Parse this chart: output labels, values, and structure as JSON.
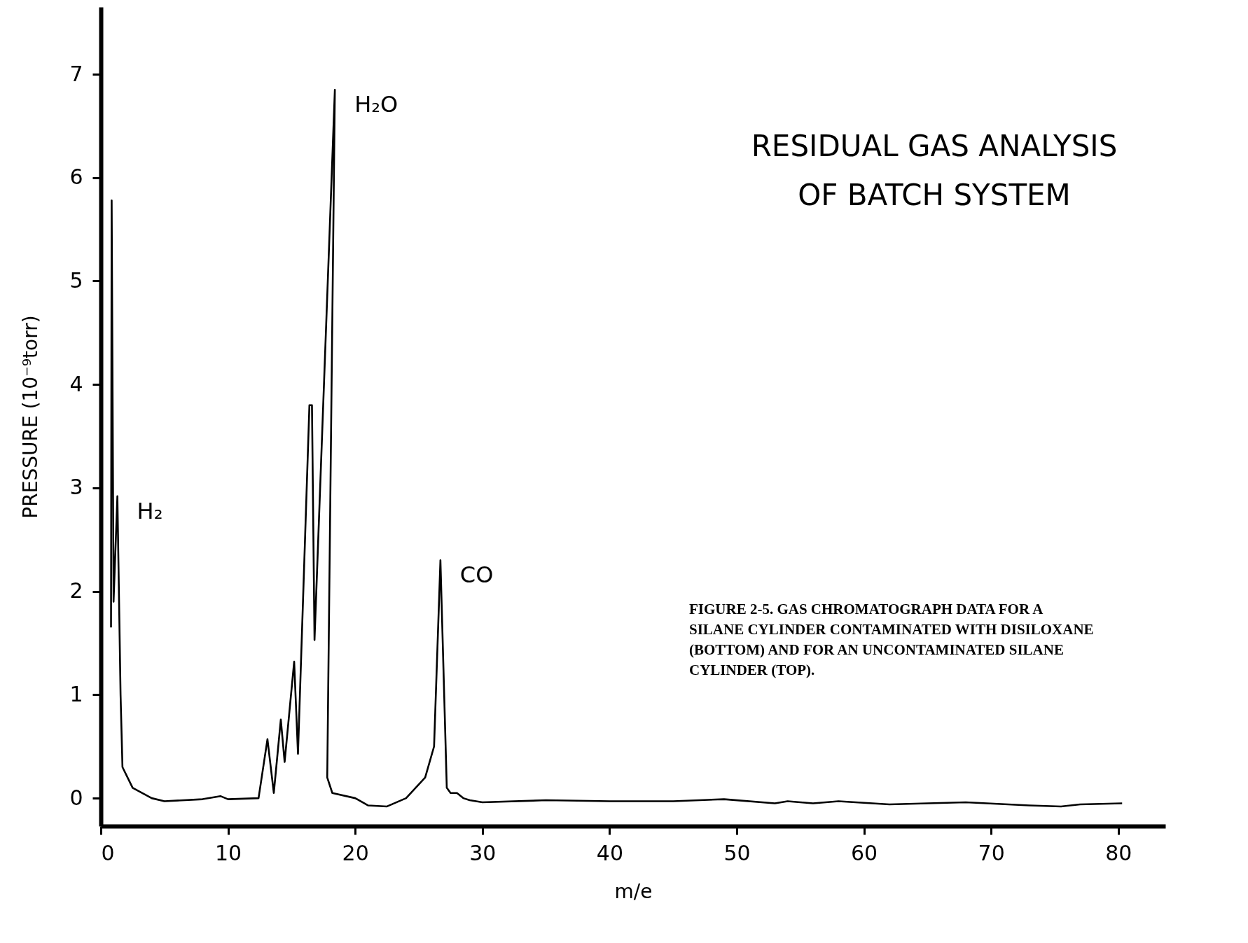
{
  "chart_data": {
    "type": "line",
    "title": "RESIDUAL GAS ANALYSIS\nOF BATCH SYSTEM",
    "xlabel": "m/e",
    "ylabel": "PRESSURE (10⁻⁹torr)",
    "series": [
      {
        "color": "#000000",
        "x": [
          0.8,
          0.85,
          1.0,
          1.3,
          1.55,
          1.7,
          2.5,
          4,
          5,
          8,
          9.4,
          10,
          12.4,
          13.1,
          13.6,
          14.15,
          14.45,
          15.2,
          15.5,
          16.4,
          16.6,
          16.8,
          18.4,
          17.8,
          18.2,
          20,
          21,
          22.5,
          24,
          25.5,
          26.2,
          26.7,
          27.2,
          27.5,
          28,
          28.5,
          29,
          29.5,
          30,
          35,
          40,
          45,
          49,
          53,
          54,
          56,
          58,
          62,
          68,
          73,
          75.5,
          77,
          80.3
        ],
        "values": [
          1.65,
          5.78,
          1.9,
          2.92,
          1.0,
          0.3,
          0.1,
          0.0,
          -0.03,
          -0.01,
          0.02,
          -0.01,
          0.0,
          0.57,
          0.05,
          0.76,
          0.35,
          1.32,
          0.43,
          3.8,
          3.8,
          1.53,
          6.85,
          0.2,
          0.05,
          0.0,
          -0.07,
          -0.08,
          0.0,
          0.2,
          0.5,
          2.3,
          0.1,
          0.05,
          0.05,
          0.0,
          -0.02,
          -0.03,
          -0.04,
          -0.02,
          -0.03,
          -0.03,
          -0.01,
          -0.05,
          -0.03,
          -0.05,
          -0.03,
          -0.06,
          -0.04,
          -0.07,
          -0.08,
          -0.06,
          -0.05
        ]
      }
    ],
    "xlim": [
      0,
      83.7
    ],
    "ylim": [
      -0.27,
      7.65
    ],
    "xticks": [
      0,
      10,
      20,
      30,
      40,
      50,
      60,
      70,
      80
    ],
    "yticks": [
      0,
      1,
      2,
      3,
      4,
      5,
      6,
      7
    ],
    "grid": false,
    "marker": "none",
    "line_style": "solid",
    "annotations": [
      {
        "text": "H₂",
        "x": 1.3,
        "y": 2.92
      },
      {
        "text": "H₂O",
        "x": 18.4,
        "y": 6.85
      },
      {
        "text": "CO",
        "x": 26.7,
        "y": 2.3
      },
      "FIGURE 2-5.  GAS CHROMATOGRAPH DATA FOR A\nSILANE CYLINDER CONTAMINATED WITH DISILOXANE\n(BOTTOM) AND FOR AN UNCONTAMINATED SILANE\nCYLINDER (TOP)."
    ]
  }
}
